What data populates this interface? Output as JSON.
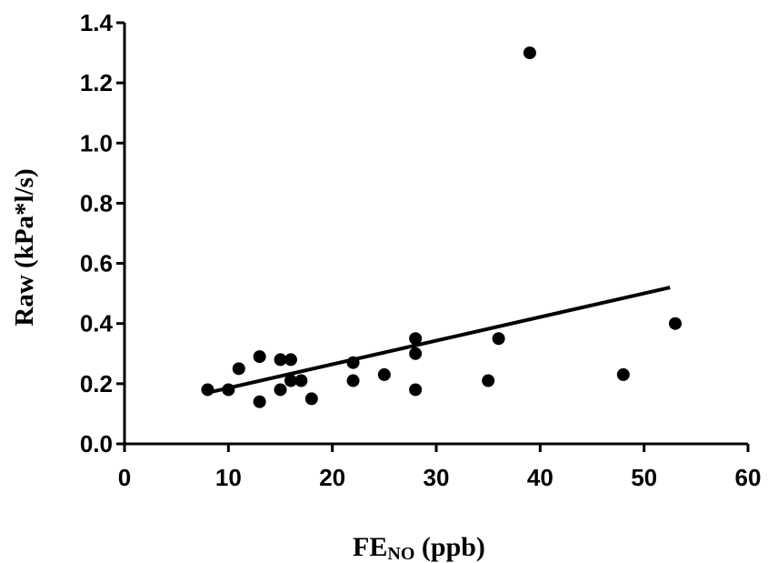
{
  "chart_data": {
    "type": "scatter",
    "title": "",
    "xlabel": {
      "main": "FE",
      "subscript": "NO",
      "suffix": " (ppb)"
    },
    "ylabel": "Raw (kPa*l/s)",
    "xlim": [
      0,
      60
    ],
    "ylim": [
      0,
      1.4
    ],
    "x_ticks": [
      "0",
      "10",
      "20",
      "30",
      "40",
      "50",
      "60"
    ],
    "y_ticks": [
      "0.0",
      "0.2",
      "0.4",
      "0.6",
      "0.8",
      "1.0",
      "1.2",
      "1.4"
    ],
    "grid": false,
    "legend": "none",
    "colors": {
      "points": "#000000",
      "line": "#000000",
      "axes": "#000000"
    },
    "points": [
      {
        "x": 8,
        "y": 0.18
      },
      {
        "x": 10,
        "y": 0.18
      },
      {
        "x": 11,
        "y": 0.25
      },
      {
        "x": 13,
        "y": 0.29
      },
      {
        "x": 13,
        "y": 0.14
      },
      {
        "x": 15,
        "y": 0.28
      },
      {
        "x": 15,
        "y": 0.18
      },
      {
        "x": 16,
        "y": 0.28
      },
      {
        "x": 16,
        "y": 0.21
      },
      {
        "x": 17,
        "y": 0.21
      },
      {
        "x": 18,
        "y": 0.15
      },
      {
        "x": 22,
        "y": 0.27
      },
      {
        "x": 22,
        "y": 0.21
      },
      {
        "x": 25,
        "y": 0.23
      },
      {
        "x": 28,
        "y": 0.35
      },
      {
        "x": 28,
        "y": 0.3
      },
      {
        "x": 28,
        "y": 0.18
      },
      {
        "x": 35,
        "y": 0.21
      },
      {
        "x": 36,
        "y": 0.35
      },
      {
        "x": 39,
        "y": 1.3
      },
      {
        "x": 48,
        "y": 0.23
      },
      {
        "x": 53,
        "y": 0.4
      }
    ],
    "regression_line": {
      "x": [
        8,
        52.5
      ],
      "y": [
        0.17,
        0.52
      ]
    }
  }
}
